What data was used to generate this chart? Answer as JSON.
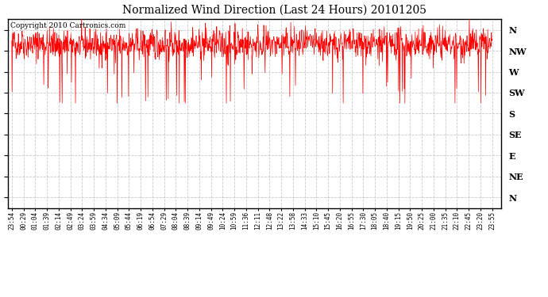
{
  "title": "Normalized Wind Direction (Last 24 Hours) 20101205",
  "copyright_text": "Copyright 2010 Cartronics.com",
  "line_color": "#ff0000",
  "background_color": "#ffffff",
  "plot_bg_color": "#ffffff",
  "ytick_labels": [
    "N",
    "NW",
    "W",
    "SW",
    "S",
    "SE",
    "E",
    "NE",
    "N"
  ],
  "ytick_values": [
    8,
    7,
    6,
    5,
    4,
    3,
    2,
    1,
    0
  ],
  "xtick_labels": [
    "23:54",
    "00:29",
    "01:04",
    "01:39",
    "02:14",
    "02:49",
    "03:24",
    "03:59",
    "04:34",
    "05:09",
    "05:44",
    "06:19",
    "06:54",
    "07:29",
    "08:04",
    "08:39",
    "09:14",
    "09:49",
    "10:24",
    "10:59",
    "11:36",
    "12:11",
    "12:48",
    "13:22",
    "13:58",
    "14:33",
    "15:10",
    "15:45",
    "16:20",
    "16:55",
    "17:30",
    "18:05",
    "18:40",
    "19:15",
    "19:50",
    "20:25",
    "21:00",
    "21:35",
    "22:10",
    "22:45",
    "23:20",
    "23:55"
  ],
  "grid_color": "#bbbbbb",
  "grid_style": "--",
  "grid_alpha": 0.8,
  "mean_value": 7.3,
  "noise_std": 0.35,
  "n_points": 1440,
  "seed": 42
}
